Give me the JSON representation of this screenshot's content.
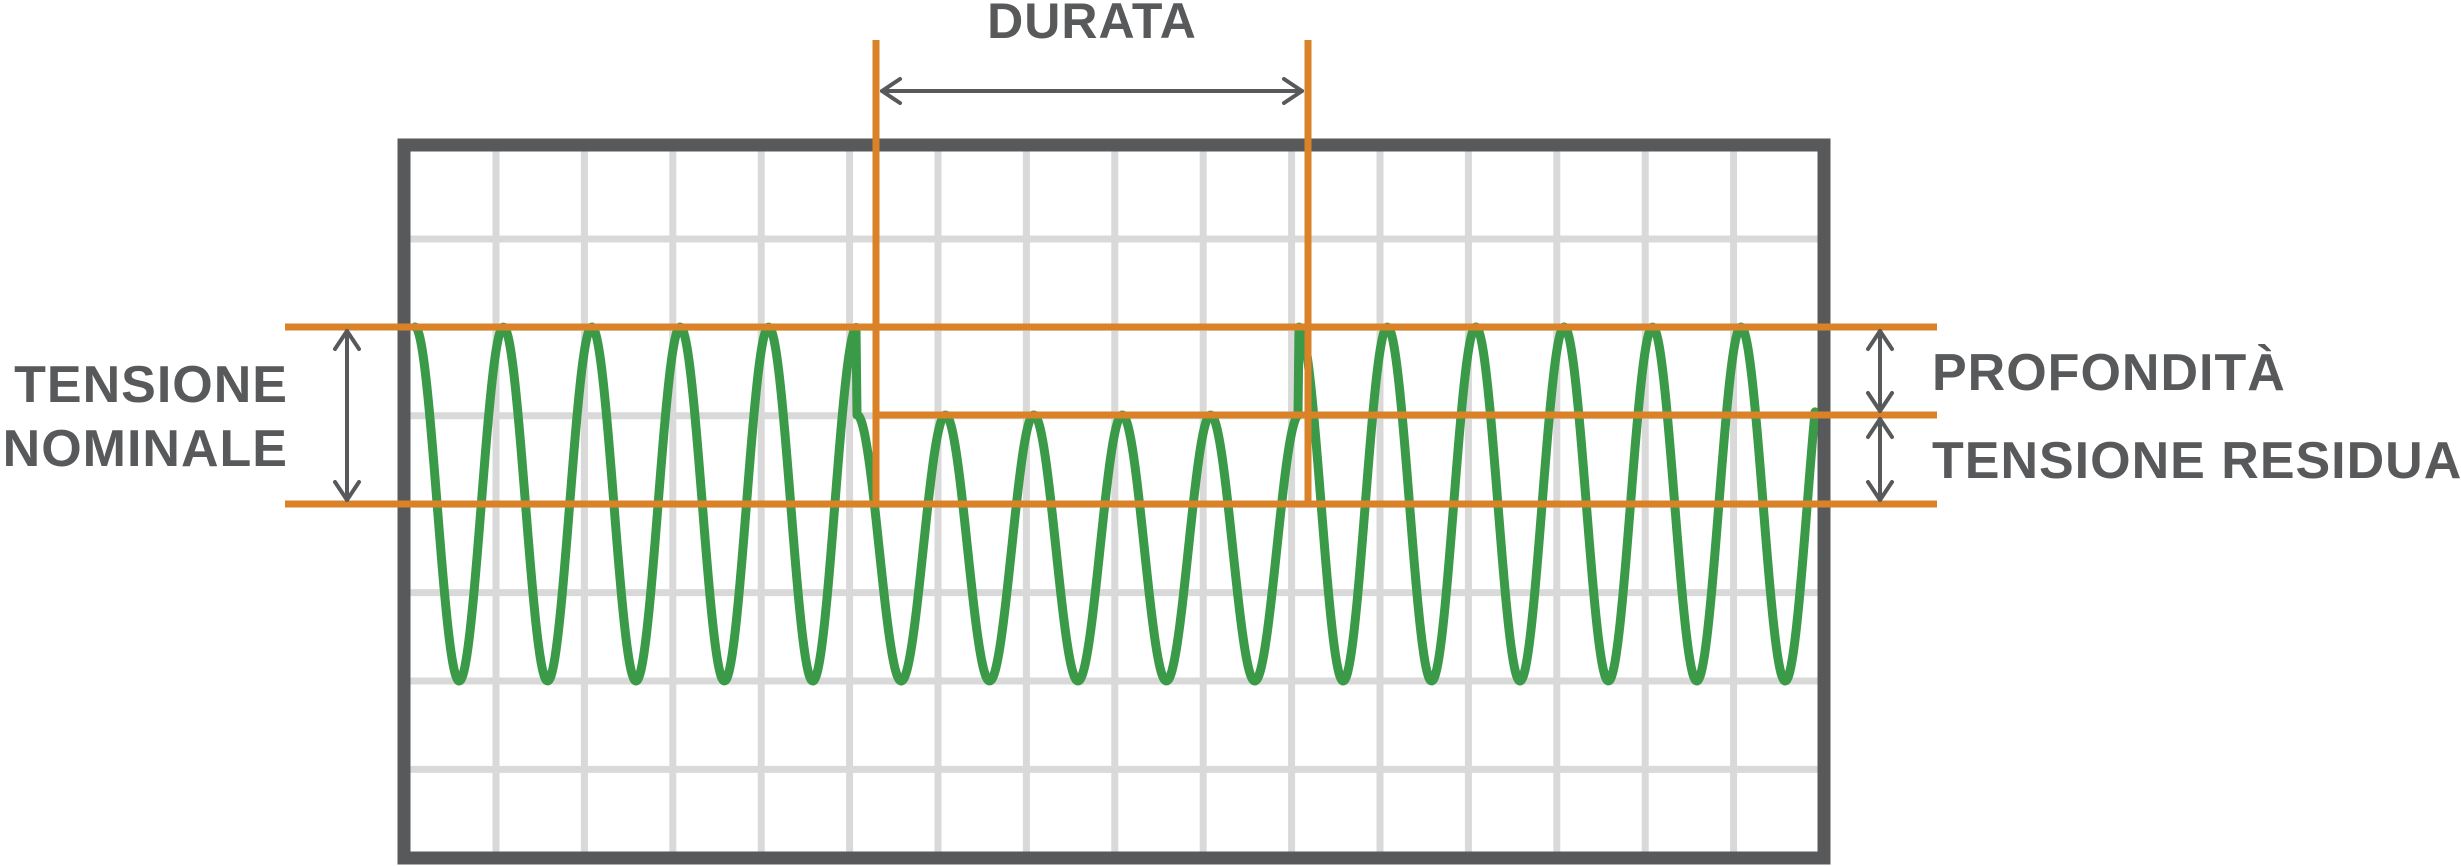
{
  "labels": {
    "duration": "DURATA",
    "nominal_voltage_line1": "TENSIONE",
    "nominal_voltage_line2": "NOMINALE",
    "depth": "PROFONDITÀ",
    "residual_voltage": "TENSIONE RESIDUA"
  },
  "colors": {
    "frame": "#58595b",
    "grid": "#d9d9d9",
    "marker": "#d98228",
    "waveform": "#3a9a47",
    "arrow": "#58595b",
    "text": "#58595b"
  },
  "waveform": {
    "normal_cycles_before": 5,
    "sag_cycles": 5,
    "normal_cycles_after": 6
  }
}
